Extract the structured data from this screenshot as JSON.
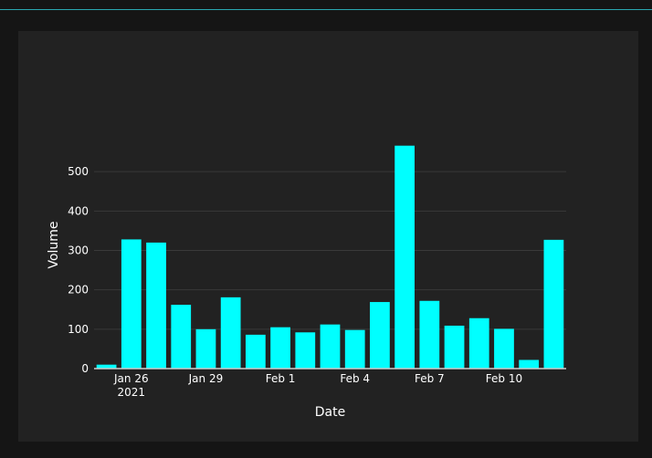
{
  "chart_data": {
    "type": "bar",
    "x": [
      "2021-01-25",
      "2021-01-26",
      "2021-01-27",
      "2021-01-28",
      "2021-01-29",
      "2021-01-30",
      "2021-01-31",
      "2021-02-01",
      "2021-02-02",
      "2021-02-03",
      "2021-02-04",
      "2021-02-05",
      "2021-02-06",
      "2021-02-07",
      "2021-02-08",
      "2021-02-09",
      "2021-02-10",
      "2021-02-11",
      "2021-02-12"
    ],
    "values": [
      10,
      328,
      320,
      162,
      100,
      181,
      86,
      105,
      92,
      112,
      98,
      169,
      566,
      172,
      109,
      128,
      101,
      22,
      327
    ],
    "xlabel": "Date",
    "ylabel": "Volume",
    "ylim": [
      0,
      600
    ],
    "yticks": [
      0,
      100,
      200,
      300,
      400,
      500
    ],
    "xticks": [
      {
        "date": "2021-01-26",
        "label": "Jan 26",
        "sublabel": "2021"
      },
      {
        "date": "2021-01-29",
        "label": "Jan 29"
      },
      {
        "date": "2021-02-01",
        "label": "Feb 1"
      },
      {
        "date": "2021-02-04",
        "label": "Feb 4"
      },
      {
        "date": "2021-02-07",
        "label": "Feb 7"
      },
      {
        "date": "2021-02-10",
        "label": "Feb 10"
      }
    ],
    "grid": true,
    "colors": {
      "bar": "#00ffff",
      "background": "#222222",
      "grid": "#3a3a3a",
      "text": "#ffffff"
    }
  }
}
